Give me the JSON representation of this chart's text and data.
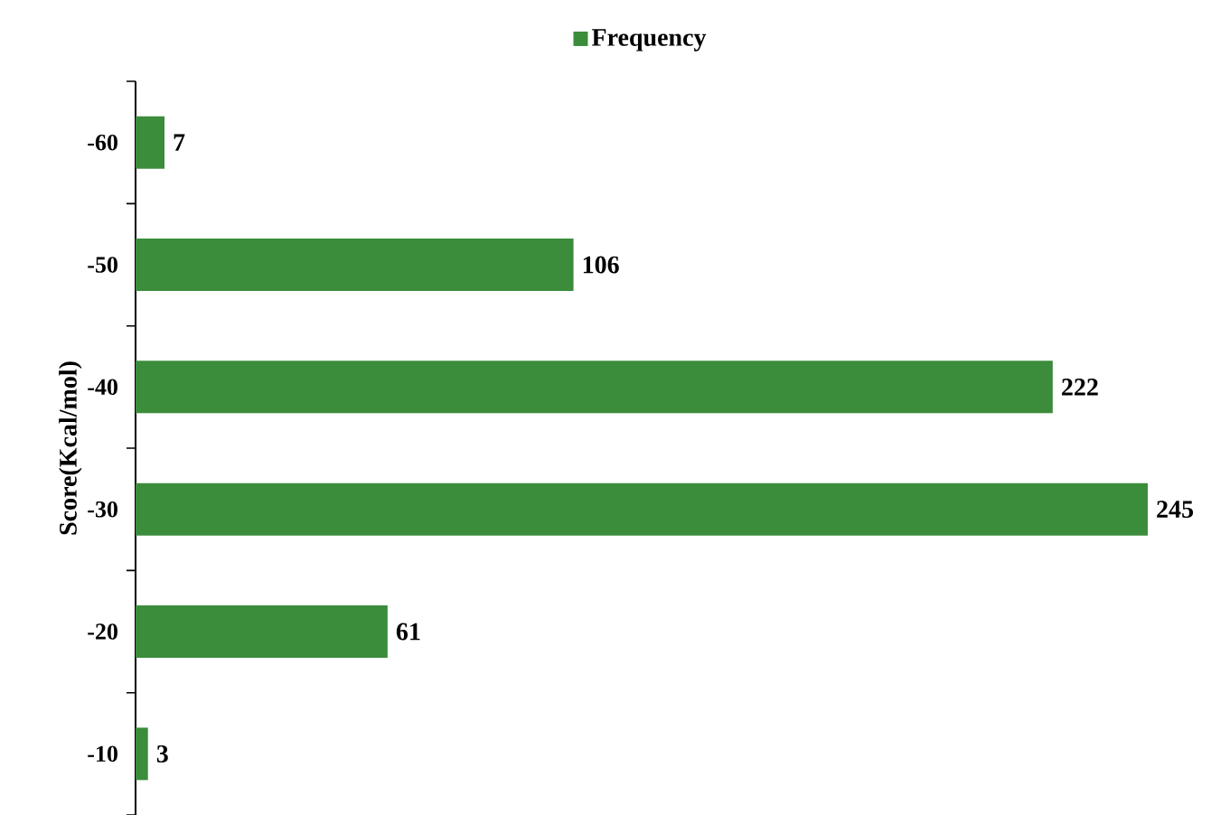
{
  "chart_data": {
    "type": "bar",
    "orientation": "horizontal",
    "categories": [
      "-60",
      "-50",
      "-40",
      "-30",
      "-20",
      "-10"
    ],
    "series": [
      {
        "name": "Frequency",
        "color": "#3b8c3b",
        "values": [
          7,
          106,
          222,
          245,
          61,
          3
        ]
      }
    ],
    "ylabel": "Score(Kcal/mol)",
    "data_labels": true,
    "legend": "top"
  }
}
